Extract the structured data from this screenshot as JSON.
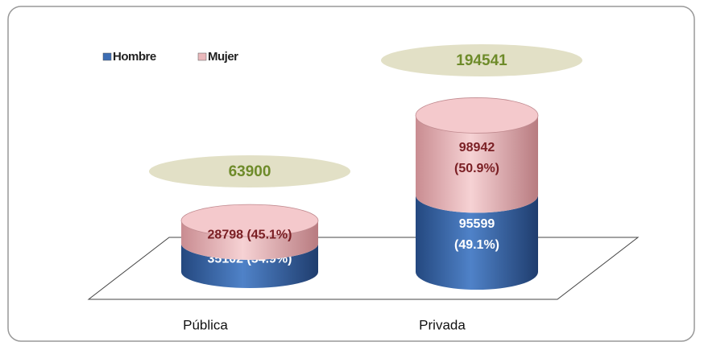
{
  "chart_data": {
    "type": "stacked-cylinder",
    "categories": [
      "Pública",
      "Privada"
    ],
    "series": [
      {
        "name": "Hombre",
        "color": "#3d6db3",
        "values": [
          35102,
          95599
        ],
        "value_labels": [
          "35102 (54.9%)",
          "95599 (49.1%)"
        ]
      },
      {
        "name": "Mujer",
        "color": "#eab8bb",
        "values": [
          28798,
          98942
        ],
        "value_labels": [
          "28798 (45.1%)",
          "98942 (50.9%)"
        ]
      }
    ],
    "totals": [
      63900,
      194541
    ],
    "legend": "top-left"
  }
}
